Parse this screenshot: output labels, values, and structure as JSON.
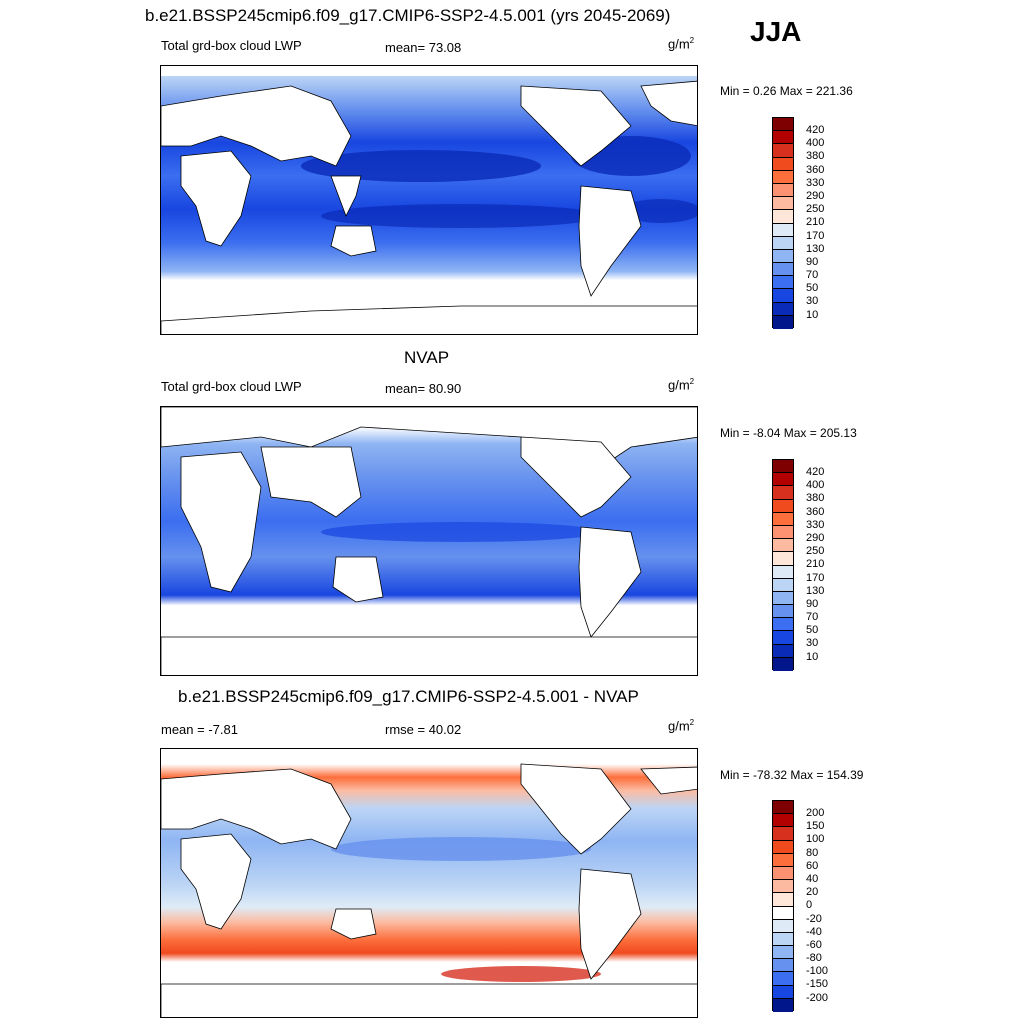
{
  "season": "JJA",
  "panels": [
    {
      "title": "b.e21.BSSP245cmip6.f09_g17.CMIP6-SSP2-4.5.001 (yrs 2045-2069)",
      "left_label": "Total grd-box cloud LWP",
      "center_label": "mean=  73.08",
      "units": "g/m",
      "units_sup": "2",
      "minmax": "Min =   0.26 Max = 221.36",
      "colorbar": {
        "labels": [
          "420",
          "400",
          "380",
          "360",
          "330",
          "290",
          "250",
          "210",
          "170",
          "130",
          "90",
          "70",
          "50",
          "30",
          "10"
        ],
        "colors": [
          "#7f0000",
          "#b30000",
          "#d7301f",
          "#f04a1f",
          "#fc6e3c",
          "#fc9272",
          "#fcbba1",
          "#fee6d8",
          "#deebf7",
          "#bcd5f5",
          "#8fb5f3",
          "#6691ee",
          "#3b6ef0",
          "#1846e0",
          "#0a2bb8",
          "#00168a"
        ]
      }
    },
    {
      "title": "NVAP",
      "left_label": "Total grd-box cloud LWP",
      "center_label": "mean=  80.90",
      "units": "g/m",
      "units_sup": "2",
      "minmax": "Min =  -8.04 Max = 205.13",
      "colorbar": {
        "labels": [
          "420",
          "400",
          "380",
          "360",
          "330",
          "290",
          "250",
          "210",
          "170",
          "130",
          "90",
          "70",
          "50",
          "30",
          "10"
        ],
        "colors": [
          "#7f0000",
          "#b30000",
          "#d7301f",
          "#f04a1f",
          "#fc6e3c",
          "#fc9272",
          "#fcbba1",
          "#fee6d8",
          "#deebf7",
          "#bcd5f5",
          "#8fb5f3",
          "#6691ee",
          "#3b6ef0",
          "#1846e0",
          "#0a2bb8",
          "#00168a"
        ]
      }
    },
    {
      "title": "b.e21.BSSP245cmip6.f09_g17.CMIP6-SSP2-4.5.001 - NVAP",
      "left_label": "mean =  -7.81",
      "center_label": "rmse =  40.02",
      "units": "g/m",
      "units_sup": "2",
      "minmax": "Min = -78.32 Max = 154.39",
      "colorbar": {
        "labels": [
          "200",
          "150",
          "100",
          "80",
          "60",
          "40",
          "20",
          "0",
          "-20",
          "-40",
          "-60",
          "-80",
          "-100",
          "-150",
          "-200"
        ],
        "colors": [
          "#7f0000",
          "#b30000",
          "#d7301f",
          "#f04a1f",
          "#fc6e3c",
          "#fc9272",
          "#fcbba1",
          "#fee6d8",
          "#ffffff",
          "#deebf7",
          "#bcd5f5",
          "#8fb5f3",
          "#6691ee",
          "#3b6ef0",
          "#1846e0",
          "#00168a"
        ]
      }
    }
  ]
}
